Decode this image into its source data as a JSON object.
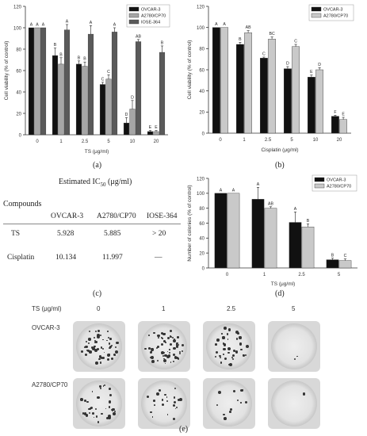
{
  "chart_data": [
    {
      "panel": "(a)",
      "type": "bar",
      "xlabel": "TS (μg/ml)",
      "ylabel": "Cell viability (% of control)",
      "ylim": [
        0,
        120
      ],
      "yticks": [
        0,
        20,
        40,
        60,
        80,
        100,
        120
      ],
      "categories": [
        "0",
        "1",
        "2.5",
        "5",
        "10",
        "20"
      ],
      "legend_position": "top-right",
      "series": [
        {
          "name": "OVCAR-3",
          "color": "#111111",
          "values": [
            100,
            74,
            66,
            47,
            11,
            3
          ],
          "errors": [
            0,
            7,
            3,
            2,
            5,
            1
          ],
          "labels": [
            "A",
            "B",
            "B",
            "C",
            "D",
            "E"
          ]
        },
        {
          "name": "A2780/CP70",
          "color": "#a6a6a6",
          "values": [
            100,
            66,
            64,
            52,
            24,
            3
          ],
          "errors": [
            0,
            6,
            4,
            4,
            8,
            1
          ],
          "labels": [
            "A",
            "B",
            "B",
            "C",
            "D",
            "E"
          ]
        },
        {
          "name": "IOSE-364",
          "color": "#5a5a5a",
          "values": [
            100,
            98,
            94,
            96,
            87,
            77
          ],
          "errors": [
            0,
            5,
            8,
            4,
            2,
            6
          ],
          "labels": [
            "A",
            "A",
            "A",
            "A",
            "AB",
            "B"
          ]
        }
      ]
    },
    {
      "panel": "(b)",
      "type": "bar",
      "xlabel": "Cisplatin (μg/ml)",
      "ylabel": "Cell viability (% of control)",
      "ylim": [
        0,
        120
      ],
      "yticks": [
        0,
        20,
        40,
        60,
        80,
        100,
        120
      ],
      "categories": [
        "0",
        "1",
        "2.5",
        "5",
        "10",
        "20"
      ],
      "legend_position": "top-right",
      "series": [
        {
          "name": "OVCAR-3",
          "color": "#111111",
          "values": [
            100,
            84,
            71,
            61,
            53,
            16
          ],
          "errors": [
            0,
            2,
            1,
            2,
            2,
            1
          ],
          "labels": [
            "A",
            "B",
            "C",
            "D",
            "E",
            "F"
          ]
        },
        {
          "name": "A2780/CP70",
          "color": "#c9c9c9",
          "values": [
            100,
            95,
            89,
            82,
            60,
            13
          ],
          "errors": [
            0,
            2,
            2,
            2,
            2,
            2
          ],
          "labels": [
            "A",
            "AB",
            "BC",
            "C",
            "D",
            "E"
          ]
        }
      ]
    },
    {
      "panel": "(d)",
      "type": "bar",
      "xlabel": "TS (μg/ml)",
      "ylabel": "Number of colonies (% of control)",
      "ylim": [
        0,
        120
      ],
      "yticks": [
        0,
        20,
        40,
        60,
        80,
        100,
        120
      ],
      "categories": [
        "0",
        "1",
        "2.5",
        "5"
      ],
      "legend_position": "top-right",
      "series": [
        {
          "name": "OVCAR-3",
          "color": "#111111",
          "values": [
            100,
            92,
            61,
            11
          ],
          "errors": [
            0,
            16,
            14,
            2
          ],
          "labels": [
            "A",
            "A",
            "A",
            "B"
          ]
        },
        {
          "name": "A2780/CP70",
          "color": "#c9c9c9",
          "values": [
            100,
            80,
            55,
            10
          ],
          "errors": [
            0,
            2,
            4,
            2
          ],
          "labels": [
            "A",
            "AB",
            "B",
            "C"
          ]
        }
      ]
    }
  ],
  "panel_labels": {
    "a": "(a)",
    "b": "(b)",
    "c": "(c)",
    "d": "(d)",
    "e": "(e)"
  },
  "ic50_table": {
    "header_compounds": "Compounds",
    "header_estimated_prefix": "Estimated IC",
    "header_estimated_sub": "50",
    "header_estimated_unit": " (μg/ml)",
    "columns": [
      "OVCAR-3",
      "A2780/CP70",
      "IOSE-364"
    ],
    "rows": [
      {
        "name": "TS",
        "values": [
          "5.928",
          "5.885",
          "> 20"
        ]
      },
      {
        "name": "Cisplatin",
        "values": [
          "10.134",
          "11.997",
          "—"
        ]
      }
    ]
  },
  "colony_assay": {
    "row_header": "TS (μg/ml)",
    "concentrations": [
      "0",
      "1",
      "2.5",
      "5"
    ],
    "cell_lines": [
      "OVCAR-3",
      "A2780/CP70"
    ]
  }
}
